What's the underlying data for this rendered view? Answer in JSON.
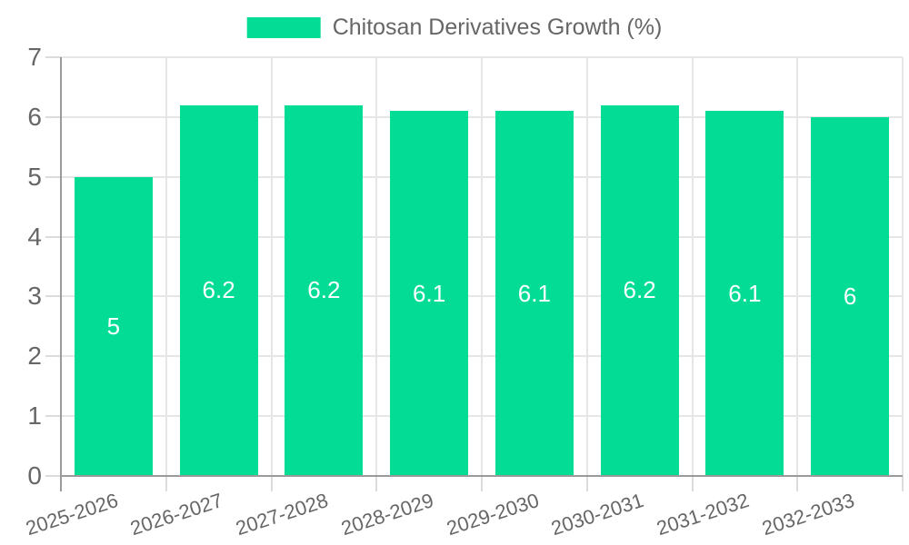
{
  "legend": {
    "items": [
      {
        "label": "Chitosan Derivatives Growth (%)",
        "color": "#02DC94"
      }
    ]
  },
  "chart_data": {
    "type": "bar",
    "title": "Chitosan Derivatives Growth (%)",
    "categories": [
      "2025-2026",
      "2026-2027",
      "2027-2028",
      "2028-2029",
      "2029-2030",
      "2030-2031",
      "2031-2032",
      "2032-2033"
    ],
    "series": [
      {
        "name": "Chitosan Derivatives Growth (%)",
        "values": [
          5,
          6.2,
          6.2,
          6.1,
          6.1,
          6.2,
          6.1,
          6
        ]
      }
    ],
    "value_labels": [
      "5",
      "6.2",
      "6.2",
      "6.1",
      "6.1",
      "6.2",
      "6.1",
      "6"
    ],
    "xlabel": "",
    "ylabel": "",
    "ylim": [
      0,
      7
    ],
    "yticks": [
      0,
      1,
      2,
      3,
      4,
      5,
      6,
      7
    ],
    "grid": true,
    "legend_position": "top",
    "bar_color": "#02DC94",
    "value_label_color": "#ffffff"
  },
  "colors": {
    "background": "#ffffff",
    "bar": "#02DC94",
    "gridline": "#e6e6e6",
    "axis_line": "#9a9a9a",
    "tick_label": "#666666",
    "legend_text": "#666666"
  }
}
